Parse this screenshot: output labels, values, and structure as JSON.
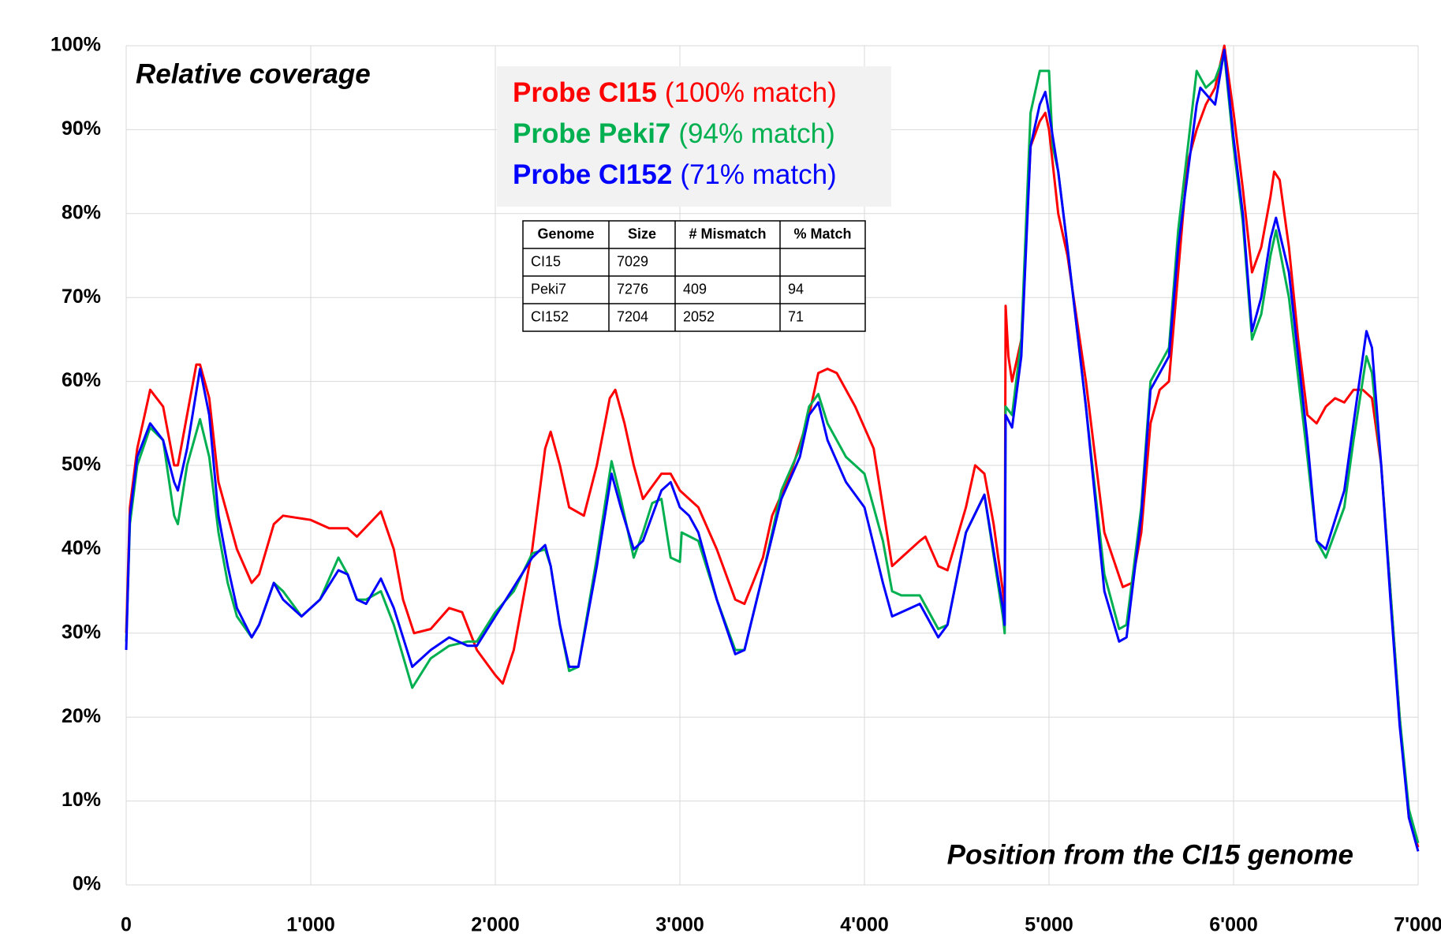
{
  "chart_data": {
    "type": "line",
    "annotations": [
      "Relative coverage",
      "Position from the CI15 genome"
    ],
    "xlim": [
      0,
      7000
    ],
    "ylim": [
      0,
      100
    ],
    "xticks": [
      0,
      {
        "value": 1000,
        "label": "1'000"
      },
      {
        "value": 2000,
        "label": "2'000"
      },
      {
        "value": 3000,
        "label": "3'000"
      },
      {
        "value": 4000,
        "label": "4'000"
      },
      {
        "value": 5000,
        "label": "5'000"
      },
      {
        "value": 6000,
        "label": "6'000"
      },
      {
        "value": 7000,
        "label": "7'000"
      }
    ],
    "yticks": [
      {
        "value": 0,
        "label": "0%"
      },
      {
        "value": 10,
        "label": "10%"
      },
      {
        "value": 20,
        "label": "20%"
      },
      {
        "value": 30,
        "label": "30%"
      },
      {
        "value": 40,
        "label": "40%"
      },
      {
        "value": 50,
        "label": "50%"
      },
      {
        "value": 60,
        "label": "60%"
      },
      {
        "value": 70,
        "label": "70%"
      },
      {
        "value": 80,
        "label": "80%"
      },
      {
        "value": 90,
        "label": "90%"
      },
      {
        "value": 100,
        "label": "100%"
      }
    ],
    "grid": true,
    "series": [
      {
        "name": "Probe CI15",
        "match_label": "(100% match)",
        "color": "#ff0000",
        "x": [
          0,
          20,
          60,
          120,
          130,
          200,
          260,
          280,
          330,
          380,
          400,
          450,
          500,
          600,
          680,
          720,
          800,
          850,
          1000,
          1100,
          1200,
          1250,
          1380,
          1450,
          1500,
          1560,
          1650,
          1750,
          1820,
          1900,
          2000,
          2040,
          2100,
          2200,
          2270,
          2300,
          2350,
          2400,
          2480,
          2550,
          2620,
          2650,
          2700,
          2750,
          2800,
          2900,
          2950,
          3000,
          3100,
          3200,
          3300,
          3350,
          3450,
          3500,
          3600,
          3700,
          3750,
          3800,
          3850,
          3950,
          4050,
          4150,
          4200,
          4300,
          4330,
          4400,
          4450,
          4550,
          4600,
          4650,
          4700,
          4750,
          4760,
          4765,
          4780,
          4800,
          4850,
          4900,
          4950,
          4980,
          5000,
          5050,
          5100,
          5200,
          5300,
          5400,
          5450,
          5500,
          5550,
          5600,
          5650,
          5700,
          5750,
          5800,
          5850,
          5900,
          5950,
          6000,
          6050,
          6100,
          6150,
          6200,
          6220,
          6250,
          6300,
          6350,
          6400,
          6450,
          6500,
          6550,
          6600,
          6650,
          6700,
          6750,
          6800,
          6850,
          6900,
          6950,
          7000
        ],
        "values": [
          30,
          45,
          52,
          58,
          59,
          57,
          50,
          50,
          56,
          62,
          62,
          58,
          48,
          40,
          36,
          37,
          43,
          44,
          43.5,
          42.5,
          42.5,
          41.5,
          44.5,
          40,
          34,
          30,
          30.5,
          33,
          32.5,
          28,
          25,
          24,
          28,
          40,
          52,
          54,
          50,
          45,
          44,
          50,
          58,
          59,
          55,
          50,
          46,
          49,
          49,
          47,
          45,
          40,
          34,
          33.5,
          39,
          44,
          49,
          56,
          61,
          61.5,
          61,
          57,
          52,
          38,
          39,
          41,
          41.5,
          38,
          37.5,
          45,
          50,
          49,
          43,
          35,
          33,
          69,
          63,
          60,
          65,
          88,
          91,
          92,
          90,
          80,
          75,
          60,
          42,
          35.5,
          36,
          42,
          55,
          59,
          60,
          73,
          86,
          90,
          93,
          95,
          100,
          92,
          83,
          73,
          76,
          82,
          85,
          84,
          76,
          65,
          56,
          55,
          57,
          58,
          57.5,
          59,
          59,
          58,
          50,
          35,
          20,
          8,
          4.5
        ]
      },
      {
        "name": "Probe Peki7",
        "match_label": "(94% match)",
        "color": "#00b050",
        "x": [
          0,
          20,
          60,
          130,
          200,
          260,
          280,
          330,
          400,
          450,
          500,
          550,
          600,
          680,
          720,
          800,
          850,
          950,
          1050,
          1150,
          1200,
          1250,
          1300,
          1380,
          1450,
          1550,
          1650,
          1750,
          1850,
          1900,
          2000,
          2100,
          2200,
          2270,
          2300,
          2350,
          2400,
          2450,
          2550,
          2630,
          2680,
          2750,
          2800,
          2850,
          2900,
          2950,
          3000,
          3010,
          3100,
          3200,
          3300,
          3350,
          3450,
          3550,
          3650,
          3700,
          3750,
          3800,
          3900,
          4000,
          4100,
          4150,
          4200,
          4300,
          4400,
          4450,
          4550,
          4650,
          4750,
          4760,
          4765,
          4800,
          4850,
          4900,
          4950,
          5000,
          5020,
          5050,
          5100,
          5200,
          5300,
          5380,
          5420,
          5500,
          5550,
          5600,
          5650,
          5700,
          5800,
          5850,
          5900,
          5950,
          6000,
          6050,
          6100,
          6150,
          6200,
          6230,
          6300,
          6400,
          6450,
          6500,
          6600,
          6650,
          6720,
          6750,
          6800,
          6850,
          6900,
          6950,
          7000
        ],
        "values": [
          29,
          43,
          50,
          54.5,
          53,
          44,
          43,
          50,
          55.5,
          51,
          42,
          36,
          32,
          29.5,
          31,
          36,
          35,
          32,
          34,
          39,
          37,
          34,
          34,
          35,
          31,
          23.5,
          27,
          28.5,
          29,
          29,
          32.5,
          35,
          39.5,
          40,
          38,
          31,
          25.5,
          26,
          39,
          50.5,
          46,
          39,
          42,
          45.5,
          46,
          39,
          38.5,
          42,
          41,
          34,
          28,
          28,
          37,
          47,
          52,
          57,
          58.5,
          55,
          51,
          49,
          41,
          35,
          34.5,
          34.5,
          30.5,
          31,
          42,
          46.5,
          32,
          30,
          57,
          56,
          65,
          92,
          97,
          97,
          88,
          85,
          76,
          57,
          37,
          30.5,
          31,
          45,
          60,
          62,
          64,
          78,
          97,
          95,
          96,
          99,
          88,
          79,
          65,
          68,
          75,
          78,
          70,
          51,
          41,
          39,
          45,
          53,
          63,
          61,
          50,
          35,
          20,
          9,
          5
        ]
      },
      {
        "name": "Probe CI152",
        "match_label": "(71% match)",
        "color": "#0000ff",
        "x": [
          0,
          20,
          60,
          130,
          200,
          260,
          280,
          330,
          400,
          450,
          500,
          550,
          600,
          680,
          720,
          800,
          850,
          950,
          1050,
          1150,
          1200,
          1250,
          1300,
          1380,
          1450,
          1550,
          1650,
          1750,
          1850,
          1900,
          2000,
          2100,
          2200,
          2270,
          2300,
          2350,
          2400,
          2450,
          2550,
          2630,
          2680,
          2750,
          2800,
          2900,
          2950,
          3000,
          3050,
          3100,
          3200,
          3300,
          3350,
          3450,
          3550,
          3650,
          3700,
          3750,
          3800,
          3900,
          4000,
          4100,
          4150,
          4200,
          4300,
          4400,
          4450,
          4550,
          4650,
          4750,
          4760,
          4765,
          4800,
          4850,
          4900,
          4950,
          4980,
          5000,
          5050,
          5100,
          5200,
          5300,
          5380,
          5420,
          5500,
          5550,
          5600,
          5650,
          5700,
          5800,
          5820,
          5900,
          5950,
          6000,
          6050,
          6100,
          6150,
          6200,
          6230,
          6300,
          6400,
          6450,
          6500,
          6600,
          6650,
          6720,
          6750,
          6800,
          6850,
          6900,
          6950,
          7000
        ],
        "values": [
          28,
          44,
          51,
          55,
          53,
          48,
          47,
          52,
          61.5,
          56,
          44,
          38,
          33,
          29.5,
          31,
          36,
          34,
          32,
          34,
          37.5,
          37,
          34,
          33.5,
          36.5,
          33,
          26,
          28,
          29.5,
          28.5,
          28.5,
          32,
          35.5,
          39,
          40.5,
          38,
          31,
          26,
          26,
          38,
          49,
          45,
          40,
          41,
          47,
          48,
          45,
          44,
          42,
          34,
          27.5,
          28,
          37,
          46,
          51,
          56,
          57.5,
          53,
          48,
          45,
          36,
          32,
          32.5,
          33.5,
          29.5,
          31,
          42,
          46.5,
          33,
          31,
          56,
          54.5,
          63,
          88,
          93,
          94.5,
          92,
          85,
          76,
          57,
          35,
          29,
          29.5,
          44,
          59,
          61,
          63,
          76,
          93,
          95,
          93,
          99.5,
          89,
          80,
          66,
          70,
          77,
          79.5,
          73,
          53,
          41,
          40,
          47,
          55,
          66,
          64,
          50,
          34,
          19,
          8,
          4
        ]
      }
    ],
    "table": {
      "columns": [
        "Genome",
        "Size",
        "# Mismatch",
        "% Match"
      ],
      "rows": [
        [
          "CI15",
          7029,
          null,
          null
        ],
        [
          "Peki7",
          7276,
          409,
          94
        ],
        [
          "CI152",
          7204,
          2052,
          71
        ]
      ]
    }
  }
}
